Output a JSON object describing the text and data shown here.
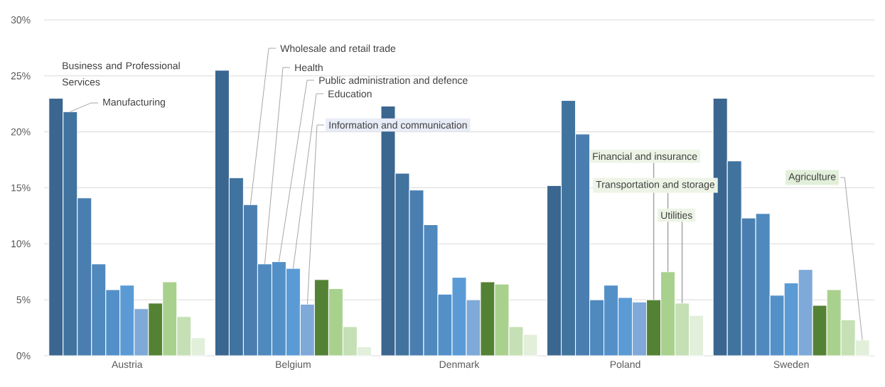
{
  "chart_data": {
    "type": "bar",
    "categories": [
      "Austria",
      "Belgium",
      "Denmark",
      "Poland",
      "Sweden"
    ],
    "series": [
      {
        "name": "Business and Professional Services",
        "color": "#3a6690",
        "values": [
          23.0,
          25.5,
          22.3,
          15.2,
          23.0
        ]
      },
      {
        "name": "Manufacturing",
        "color": "#41739f",
        "values": [
          21.8,
          15.9,
          16.3,
          22.8,
          17.4
        ]
      },
      {
        "name": "Wholesale and retail trade",
        "color": "#4a7eb0",
        "values": [
          14.1,
          13.5,
          14.8,
          19.8,
          12.3
        ]
      },
      {
        "name": "Health",
        "color": "#4f89bd",
        "values": [
          8.2,
          8.2,
          11.7,
          5.0,
          12.7
        ]
      },
      {
        "name": "Public administration and defence",
        "color": "#5490c8",
        "values": [
          5.9,
          8.4,
          5.5,
          6.3,
          5.4
        ]
      },
      {
        "name": "Education",
        "color": "#5b9bd5",
        "values": [
          6.3,
          7.8,
          7.0,
          5.2,
          6.5
        ]
      },
      {
        "name": "Information and communication",
        "color": "#7ea9d8",
        "values": [
          4.2,
          4.6,
          5.0,
          4.8,
          7.7
        ]
      },
      {
        "name": "Financial and insurance",
        "color": "#548235",
        "values": [
          4.7,
          6.8,
          6.6,
          5.0,
          4.5
        ]
      },
      {
        "name": "Transportation and storage",
        "color": "#a9d18e",
        "values": [
          6.6,
          6.0,
          6.4,
          7.5,
          5.9
        ]
      },
      {
        "name": "Utilities",
        "color": "#c5e0b4",
        "values": [
          3.5,
          2.6,
          2.6,
          4.7,
          3.2
        ]
      },
      {
        "name": "Agriculture",
        "color": "#e2efda",
        "values": [
          1.6,
          0.8,
          1.9,
          3.6,
          1.4
        ]
      }
    ],
    "ylim": [
      0,
      30
    ],
    "yticks": [
      {
        "value": 0,
        "label": "0%"
      },
      {
        "value": 5,
        "label": "5%"
      },
      {
        "value": 10,
        "label": "10%"
      },
      {
        "value": 15,
        "label": "15%"
      },
      {
        "value": 20,
        "label": "20%"
      },
      {
        "value": 25,
        "label": "25%"
      },
      {
        "value": 30,
        "label": "30%"
      }
    ],
    "grid": "y"
  }
}
